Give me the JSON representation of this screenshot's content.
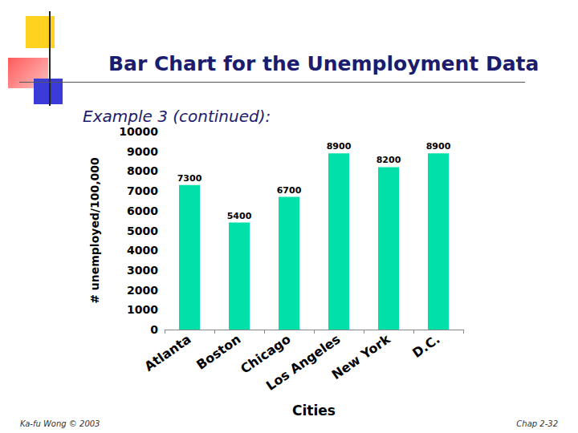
{
  "chart_data": {
    "type": "bar",
    "title": "Bar Chart for the Unemployment Data",
    "subtitle": "Example 3 (continued):",
    "x_label": "Cities",
    "y_label": "# unemployed/100,000",
    "categories": [
      "Atlanta",
      "Boston",
      "Chicago",
      "Los Angeles",
      "New York",
      "D.C."
    ],
    "values": [
      7300,
      5400,
      6700,
      8900,
      8200,
      8900
    ],
    "color": "#00e0a8",
    "ylim": [
      0,
      10000
    ],
    "yticks": [
      0,
      1000,
      2000,
      3000,
      4000,
      5000,
      6000,
      7000,
      8000,
      9000,
      10000
    ],
    "grid": false,
    "data_labels": true
  },
  "footer": {
    "left": "Ka-fu Wong © 2003",
    "right": "Chap 2-32"
  }
}
